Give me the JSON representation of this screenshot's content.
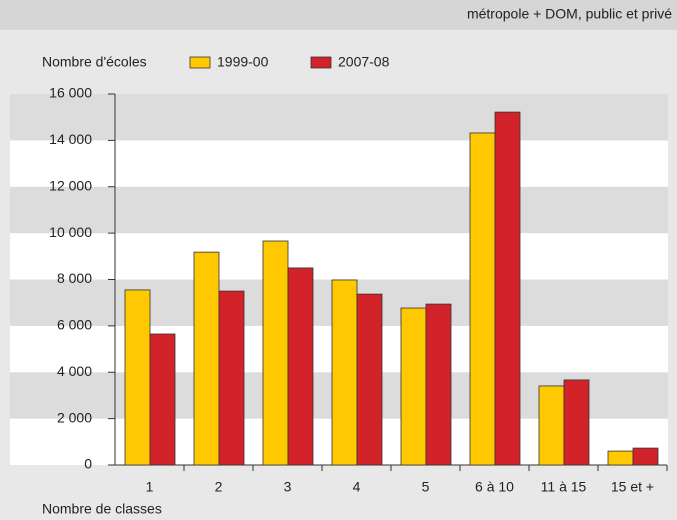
{
  "chart_data": {
    "type": "bar",
    "subtitle": "métropole + DOM, public et privé",
    "y_label": "Nombre d'écoles",
    "x_label": "Nombre de classes",
    "categories": [
      "1",
      "2",
      "3",
      "4",
      "5",
      "6 à 10",
      "11 à 15",
      "15 et +"
    ],
    "series": [
      {
        "name": "1999-00",
        "color": "#ffc800",
        "values": [
          7550,
          9180,
          9660,
          7980,
          6770,
          14320,
          3410,
          600
        ]
      },
      {
        "name": "2007-08",
        "color": "#d2232a",
        "values": [
          5650,
          7500,
          8500,
          7370,
          6940,
          15220,
          3670,
          730
        ]
      }
    ],
    "ylim": [
      0,
      16000
    ],
    "yticks": [
      0,
      {
        "value": 2000,
        "label": "2 000"
      },
      {
        "value": 4000,
        "label": "4 000"
      },
      {
        "value": 6000,
        "label": "6 000"
      },
      {
        "value": 8000,
        "label": "8 000"
      },
      {
        "value": 10000,
        "label": "10 000"
      },
      {
        "value": 12000,
        "label": "12 000"
      },
      {
        "value": 14000,
        "label": "14 000"
      },
      {
        "value": 16000,
        "label": "16 000"
      }
    ],
    "grid": true
  }
}
